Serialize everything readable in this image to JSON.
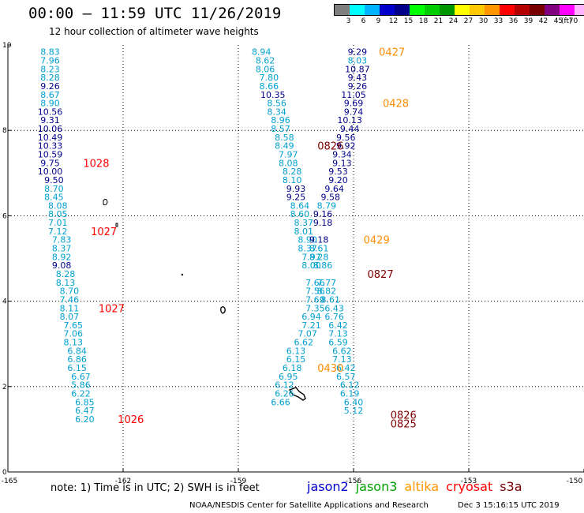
{
  "header": {
    "title": "00:00 — 11:59 UTC 11/26/2019",
    "subtitle": "12 hour collection of altimeter wave heights"
  },
  "colorbar": {
    "colors": [
      "#7f7f7f",
      "#00ffff",
      "#00b4ff",
      "#0000cd",
      "#00008b",
      "#00ff00",
      "#00cd00",
      "#009600",
      "#ffff00",
      "#ffc800",
      "#ff9600",
      "#ff0000",
      "#b40000",
      "#780000",
      "#800080",
      "#ff00ff",
      "#ffb4ff",
      "#000000"
    ],
    "labels": [
      "3",
      "6",
      "9",
      "12",
      "15",
      "18",
      "21",
      "24",
      "27",
      "30",
      "33",
      "36",
      "39",
      "42",
      "45",
      "70"
    ],
    "units": "(ft)"
  },
  "colors": {
    "cyan_text": "#00a0d0",
    "blue_text": "#00008b",
    "orange_text": "#ff8c00",
    "maroon_text": "#800000",
    "red_text": "#ff0000"
  },
  "chart_data": {
    "type": "scatter",
    "xlabel": "",
    "ylabel": "",
    "xlim": [
      -165,
      -150
    ],
    "ylim": [
      0,
      10
    ],
    "x_ticks": [
      "-165",
      "-162",
      "-159",
      "-156",
      "-153",
      "-150"
    ],
    "y_ticks": [
      "0",
      "2",
      "4",
      "6",
      "8",
      "10"
    ],
    "grid": true,
    "series": [
      {
        "name": "jason2",
        "points": [
          {
            "x": -163.9,
            "y": 9.84,
            "v": "8.83",
            "c": "cyan"
          },
          {
            "x": -163.9,
            "y": 9.64,
            "v": "7.96",
            "c": "cyan"
          },
          {
            "x": -163.9,
            "y": 9.44,
            "v": "8.23",
            "c": "cyan"
          },
          {
            "x": -163.9,
            "y": 9.24,
            "v": "8.28",
            "c": "cyan"
          },
          {
            "x": -163.9,
            "y": 9.04,
            "v": "9.26",
            "c": "blue"
          },
          {
            "x": -163.9,
            "y": 8.84,
            "v": "8.67",
            "c": "cyan"
          },
          {
            "x": -163.9,
            "y": 8.64,
            "v": "8.90",
            "c": "cyan"
          },
          {
            "x": -163.9,
            "y": 8.44,
            "v": "10.56",
            "c": "blue"
          },
          {
            "x": -163.9,
            "y": 8.24,
            "v": "9.31",
            "c": "blue"
          },
          {
            "x": -163.9,
            "y": 8.04,
            "v": "10.06",
            "c": "blue"
          },
          {
            "x": -163.9,
            "y": 7.84,
            "v": "10.49",
            "c": "blue"
          },
          {
            "x": -163.9,
            "y": 7.64,
            "v": "10.33",
            "c": "blue"
          },
          {
            "x": -163.9,
            "y": 7.44,
            "v": "10.59",
            "c": "blue"
          },
          {
            "x": -163.9,
            "y": 7.24,
            "v": "9.75",
            "c": "blue"
          },
          {
            "x": -163.9,
            "y": 7.04,
            "v": "10.00",
            "c": "blue"
          },
          {
            "x": -163.8,
            "y": 6.84,
            "v": "9.50",
            "c": "blue"
          },
          {
            "x": -163.8,
            "y": 6.64,
            "v": "8.70",
            "c": "cyan"
          },
          {
            "x": -163.8,
            "y": 6.44,
            "v": "8.45",
            "c": "cyan"
          },
          {
            "x": -163.7,
            "y": 6.24,
            "v": "8.08",
            "c": "cyan"
          },
          {
            "x": -163.7,
            "y": 6.04,
            "v": "8.05",
            "c": "cyan"
          },
          {
            "x": -163.7,
            "y": 5.84,
            "v": "7.01",
            "c": "cyan"
          },
          {
            "x": -163.7,
            "y": 5.64,
            "v": "7.12",
            "c": "cyan"
          },
          {
            "x": -163.6,
            "y": 5.44,
            "v": "7.83",
            "c": "cyan"
          },
          {
            "x": -163.6,
            "y": 5.24,
            "v": "8.37",
            "c": "cyan"
          },
          {
            "x": -163.6,
            "y": 5.04,
            "v": "8.92",
            "c": "cyan"
          },
          {
            "x": -163.6,
            "y": 4.84,
            "v": "9.08",
            "c": "blue"
          },
          {
            "x": -163.5,
            "y": 4.64,
            "v": "8.28",
            "c": "cyan"
          },
          {
            "x": -163.5,
            "y": 4.44,
            "v": "8.13",
            "c": "cyan"
          },
          {
            "x": -163.4,
            "y": 4.24,
            "v": "8.70",
            "c": "cyan"
          },
          {
            "x": -163.4,
            "y": 4.04,
            "v": "7.46",
            "c": "cyan"
          },
          {
            "x": -163.4,
            "y": 3.84,
            "v": "8.11",
            "c": "cyan"
          },
          {
            "x": -163.4,
            "y": 3.64,
            "v": "8.07",
            "c": "cyan"
          },
          {
            "x": -163.3,
            "y": 3.44,
            "v": "7.65",
            "c": "cyan"
          },
          {
            "x": -163.3,
            "y": 3.24,
            "v": "7.06",
            "c": "cyan"
          },
          {
            "x": -163.3,
            "y": 3.04,
            "v": "8.13",
            "c": "cyan"
          },
          {
            "x": -163.2,
            "y": 2.84,
            "v": "6.84",
            "c": "cyan"
          },
          {
            "x": -163.2,
            "y": 2.64,
            "v": "6.86",
            "c": "cyan"
          },
          {
            "x": -163.2,
            "y": 2.44,
            "v": "6.15",
            "c": "cyan"
          },
          {
            "x": -163.1,
            "y": 2.24,
            "v": "6.67",
            "c": "cyan"
          },
          {
            "x": -163.1,
            "y": 2.04,
            "v": "5.86",
            "c": "cyan"
          },
          {
            "x": -163.1,
            "y": 1.84,
            "v": "6.22",
            "c": "cyan"
          },
          {
            "x": -163.0,
            "y": 1.64,
            "v": "6.85",
            "c": "cyan"
          },
          {
            "x": -163.0,
            "y": 1.44,
            "v": "6.47",
            "c": "cyan"
          },
          {
            "x": -163.0,
            "y": 1.24,
            "v": "6.20",
            "c": "cyan"
          }
        ]
      },
      {
        "name": "jason3",
        "points": [
          {
            "x": -158.4,
            "y": 9.84,
            "v": "8.94",
            "c": "cyan"
          },
          {
            "x": -158.3,
            "y": 9.64,
            "v": "8.62",
            "c": "cyan"
          },
          {
            "x": -158.3,
            "y": 9.44,
            "v": "8.06",
            "c": "cyan"
          },
          {
            "x": -158.2,
            "y": 9.24,
            "v": "7.80",
            "c": "cyan"
          },
          {
            "x": -158.2,
            "y": 9.04,
            "v": "8.66",
            "c": "cyan"
          },
          {
            "x": -158.1,
            "y": 8.84,
            "v": "10.35",
            "c": "blue"
          },
          {
            "x": -158.0,
            "y": 8.64,
            "v": "8.56",
            "c": "cyan"
          },
          {
            "x": -158.0,
            "y": 8.44,
            "v": "8.34",
            "c": "cyan"
          },
          {
            "x": -157.9,
            "y": 8.24,
            "v": "8.96",
            "c": "cyan"
          },
          {
            "x": -157.9,
            "y": 8.04,
            "v": "8.57",
            "c": "cyan"
          },
          {
            "x": -157.8,
            "y": 7.84,
            "v": "8.58",
            "c": "cyan"
          },
          {
            "x": -157.8,
            "y": 7.64,
            "v": "8.49",
            "c": "cyan"
          },
          {
            "x": -157.7,
            "y": 7.44,
            "v": "7.97",
            "c": "cyan"
          },
          {
            "x": -157.7,
            "y": 7.24,
            "v": "8.08",
            "c": "cyan"
          },
          {
            "x": -157.6,
            "y": 7.04,
            "v": "8.28",
            "c": "cyan"
          },
          {
            "x": -157.6,
            "y": 6.84,
            "v": "8.10",
            "c": "cyan"
          },
          {
            "x": -157.5,
            "y": 6.64,
            "v": "9.93",
            "c": "blue"
          },
          {
            "x": -157.5,
            "y": 6.44,
            "v": "9.25",
            "c": "blue"
          },
          {
            "x": -157.4,
            "y": 6.24,
            "v": "8.64",
            "c": "cyan"
          },
          {
            "x": -157.4,
            "y": 6.04,
            "v": "8.60",
            "c": "cyan"
          },
          {
            "x": -157.3,
            "y": 5.84,
            "v": "8.37",
            "c": "cyan"
          },
          {
            "x": -157.3,
            "y": 5.64,
            "v": "8.01",
            "c": "cyan"
          },
          {
            "x": -157.2,
            "y": 5.44,
            "v": "8.90",
            "c": "cyan"
          },
          {
            "x": -157.2,
            "y": 5.24,
            "v": "8.37",
            "c": "cyan"
          },
          {
            "x": -157.1,
            "y": 5.04,
            "v": "7.97",
            "c": "cyan"
          },
          {
            "x": -157.1,
            "y": 4.84,
            "v": "8.00",
            "c": "cyan"
          },
          {
            "x": -157.0,
            "y": 4.44,
            "v": "7.66",
            "c": "cyan"
          },
          {
            "x": -157.0,
            "y": 4.24,
            "v": "7.56",
            "c": "cyan"
          },
          {
            "x": -157.0,
            "y": 4.04,
            "v": "7.69",
            "c": "cyan"
          },
          {
            "x": -157.0,
            "y": 3.84,
            "v": "7.35",
            "c": "cyan"
          },
          {
            "x": -157.1,
            "y": 3.64,
            "v": "6.94",
            "c": "cyan"
          },
          {
            "x": -157.1,
            "y": 3.44,
            "v": "7.21",
            "c": "cyan"
          },
          {
            "x": -157.2,
            "y": 3.24,
            "v": "7.07",
            "c": "cyan"
          },
          {
            "x": -157.3,
            "y": 3.04,
            "v": "6.62",
            "c": "cyan"
          },
          {
            "x": -157.5,
            "y": 2.84,
            "v": "6.13",
            "c": "cyan"
          },
          {
            "x": -157.5,
            "y": 2.64,
            "v": "6.15",
            "c": "cyan"
          },
          {
            "x": -157.6,
            "y": 2.44,
            "v": "6.18",
            "c": "cyan"
          },
          {
            "x": -157.7,
            "y": 2.24,
            "v": "6.95",
            "c": "cyan"
          },
          {
            "x": -157.8,
            "y": 2.04,
            "v": "6.12",
            "c": "cyan"
          },
          {
            "x": -157.8,
            "y": 1.84,
            "v": "6.26",
            "c": "cyan"
          },
          {
            "x": -157.9,
            "y": 1.64,
            "v": "6.66",
            "c": "cyan"
          }
        ]
      },
      {
        "name": "jason3-b",
        "points": [
          {
            "x": -155.9,
            "y": 9.84,
            "v": "9.29",
            "c": "blue"
          },
          {
            "x": -155.9,
            "y": 9.64,
            "v": "8.03",
            "c": "cyan"
          },
          {
            "x": -155.9,
            "y": 9.44,
            "v": "10.87",
            "c": "blue"
          },
          {
            "x": -155.9,
            "y": 9.24,
            "v": "9.43",
            "c": "blue"
          },
          {
            "x": -155.9,
            "y": 9.04,
            "v": "9.26",
            "c": "blue"
          },
          {
            "x": -156.0,
            "y": 8.84,
            "v": "11.05",
            "c": "blue"
          },
          {
            "x": -156.0,
            "y": 8.64,
            "v": "9.69",
            "c": "blue"
          },
          {
            "x": -156.0,
            "y": 8.44,
            "v": "9.74",
            "c": "blue"
          },
          {
            "x": -156.1,
            "y": 8.24,
            "v": "10.13",
            "c": "blue"
          },
          {
            "x": -156.1,
            "y": 8.04,
            "v": "9.44",
            "c": "blue"
          },
          {
            "x": -156.2,
            "y": 7.84,
            "v": "9.56",
            "c": "blue"
          },
          {
            "x": -156.2,
            "y": 7.64,
            "v": "9.92",
            "c": "blue"
          },
          {
            "x": -156.3,
            "y": 7.44,
            "v": "9.34",
            "c": "blue"
          },
          {
            "x": -156.3,
            "y": 7.24,
            "v": "9.13",
            "c": "blue"
          },
          {
            "x": -156.4,
            "y": 7.04,
            "v": "9.53",
            "c": "blue"
          },
          {
            "x": -156.4,
            "y": 6.84,
            "v": "9.20",
            "c": "blue"
          },
          {
            "x": -156.5,
            "y": 6.64,
            "v": "9.64",
            "c": "blue"
          },
          {
            "x": -156.6,
            "y": 6.44,
            "v": "9.58",
            "c": "blue"
          },
          {
            "x": -156.7,
            "y": 6.24,
            "v": "8.79",
            "c": "cyan"
          },
          {
            "x": -156.8,
            "y": 6.04,
            "v": "9.16",
            "c": "blue"
          },
          {
            "x": -156.8,
            "y": 5.84,
            "v": "9.18",
            "c": "blue"
          },
          {
            "x": -156.9,
            "y": 5.44,
            "v": "9.18",
            "c": "blue"
          },
          {
            "x": -156.9,
            "y": 5.24,
            "v": "8.61",
            "c": "cyan"
          },
          {
            "x": -156.9,
            "y": 5.04,
            "v": "8.28",
            "c": "cyan"
          },
          {
            "x": -156.8,
            "y": 4.84,
            "v": "8.86",
            "c": "cyan"
          },
          {
            "x": -156.7,
            "y": 4.44,
            "v": "7.77",
            "c": "cyan"
          },
          {
            "x": -156.7,
            "y": 4.24,
            "v": "8.82",
            "c": "cyan"
          },
          {
            "x": -156.6,
            "y": 4.04,
            "v": "8.61",
            "c": "cyan"
          },
          {
            "x": -156.5,
            "y": 3.84,
            "v": "6.43",
            "c": "cyan"
          },
          {
            "x": -156.5,
            "y": 3.64,
            "v": "6.76",
            "c": "cyan"
          },
          {
            "x": -156.4,
            "y": 3.44,
            "v": "6.42",
            "c": "cyan"
          },
          {
            "x": -156.4,
            "y": 3.24,
            "v": "7.13",
            "c": "cyan"
          },
          {
            "x": -156.4,
            "y": 3.04,
            "v": "6.59",
            "c": "cyan"
          },
          {
            "x": -156.3,
            "y": 2.84,
            "v": "6.62",
            "c": "cyan"
          },
          {
            "x": -156.3,
            "y": 2.64,
            "v": "7.13",
            "c": "cyan"
          },
          {
            "x": -156.2,
            "y": 2.44,
            "v": "6.42",
            "c": "cyan"
          },
          {
            "x": -156.2,
            "y": 2.24,
            "v": "6.57",
            "c": "cyan"
          },
          {
            "x": -156.1,
            "y": 2.04,
            "v": "6.12",
            "c": "cyan"
          },
          {
            "x": -156.1,
            "y": 1.84,
            "v": "6.19",
            "c": "cyan"
          },
          {
            "x": -156.0,
            "y": 1.64,
            "v": "6.40",
            "c": "cyan"
          },
          {
            "x": -156.0,
            "y": 1.44,
            "v": "5.12",
            "c": "cyan"
          }
        ]
      }
    ],
    "annotations": [
      {
        "text": "0427",
        "x": -155.0,
        "y": 9.84,
        "c": "orange"
      },
      {
        "text": "0428",
        "x": -154.9,
        "y": 8.64,
        "c": "orange"
      },
      {
        "text": "0429",
        "x": -155.4,
        "y": 5.44,
        "c": "orange"
      },
      {
        "text": "0430",
        "x": -156.6,
        "y": 2.44,
        "c": "orange"
      },
      {
        "text": "0826",
        "x": -156.6,
        "y": 7.64,
        "c": "maroon"
      },
      {
        "text": "0827",
        "x": -155.3,
        "y": 4.64,
        "c": "maroon"
      },
      {
        "text": "0826",
        "x": -154.7,
        "y": 1.34,
        "c": "maroon"
      },
      {
        "text": "0825",
        "x": -154.7,
        "y": 1.14,
        "c": "maroon"
      },
      {
        "text": "1028",
        "x": -162.7,
        "y": 7.24,
        "c": "red"
      },
      {
        "text": "1027",
        "x": -162.5,
        "y": 5.64,
        "c": "red"
      },
      {
        "text": "1027",
        "x": -162.3,
        "y": 3.84,
        "c": "red"
      },
      {
        "text": "1026",
        "x": -161.8,
        "y": 1.24,
        "c": "red"
      }
    ]
  },
  "footer": {
    "note": "note: 1) Time is in UTC; 2) SWH is in feet",
    "legend": [
      {
        "label": "jason2",
        "color": "#0000cd"
      },
      {
        "label": "jason3",
        "color": "#00a000"
      },
      {
        "label": "altika",
        "color": "#ff9600"
      },
      {
        "label": "cryosat",
        "color": "#ff0000"
      },
      {
        "label": "s3a",
        "color": "#780000"
      }
    ],
    "credit": "NOAA/NESDIS Center for Satellite Applications and Research",
    "timestamp": "Dec  3 15:16:15 UTC 2019"
  }
}
